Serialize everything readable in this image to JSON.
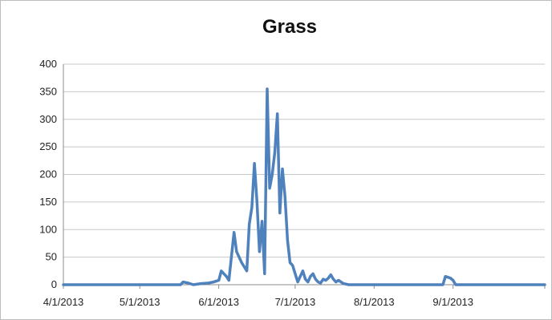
{
  "chart_data": {
    "type": "line",
    "title": "Grass",
    "xlabel": "",
    "ylabel": "",
    "ylim": [
      0,
      400
    ],
    "yticks": [
      0,
      50,
      100,
      150,
      200,
      250,
      300,
      350,
      400
    ],
    "xlim": [
      "2013-04-01",
      "2013-10-07"
    ],
    "xticks": [
      {
        "date": "2013-04-01",
        "label": "4/1/2013"
      },
      {
        "date": "2013-05-01",
        "label": "5/1/2013"
      },
      {
        "date": "2013-06-01",
        "label": "6/1/2013"
      },
      {
        "date": "2013-07-01",
        "label": "7/1/2013"
      },
      {
        "date": "2013-08-01",
        "label": "8/1/2013"
      },
      {
        "date": "2013-09-01",
        "label": "9/1/2013"
      }
    ],
    "grid": true,
    "line_color": "#4f81bd",
    "series": [
      {
        "x": [
          "2013-04-01",
          "2013-05-17",
          "2013-05-18",
          "2013-05-20",
          "2013-05-22",
          "2013-05-25",
          "2013-05-28",
          "2013-05-30",
          "2013-06-01",
          "2013-06-02",
          "2013-06-04",
          "2013-06-05",
          "2013-06-07",
          "2013-06-08",
          "2013-06-10",
          "2013-06-12",
          "2013-06-13",
          "2013-06-14",
          "2013-06-15",
          "2013-06-16",
          "2013-06-17",
          "2013-06-18",
          "2013-06-19",
          "2013-06-20",
          "2013-06-21",
          "2013-06-22",
          "2013-06-23",
          "2013-06-24",
          "2013-06-25",
          "2013-06-26",
          "2013-06-27",
          "2013-06-28",
          "2013-06-29",
          "2013-06-30",
          "2013-07-01",
          "2013-07-02",
          "2013-07-03",
          "2013-07-04",
          "2013-07-05",
          "2013-07-06",
          "2013-07-07",
          "2013-07-08",
          "2013-07-09",
          "2013-07-10",
          "2013-07-11",
          "2013-07-12",
          "2013-07-13",
          "2013-07-14",
          "2013-07-15",
          "2013-07-16",
          "2013-07-17",
          "2013-07-18",
          "2013-07-19",
          "2013-07-20",
          "2013-07-22",
          "2013-07-25",
          "2013-08-01",
          "2013-08-28",
          "2013-08-29",
          "2013-08-31",
          "2013-09-01",
          "2013-09-02",
          "2013-10-07"
        ],
        "y": [
          0,
          0,
          5,
          3,
          0,
          2,
          3,
          5,
          8,
          25,
          15,
          8,
          95,
          60,
          40,
          25,
          110,
          140,
          220,
          150,
          60,
          115,
          20,
          355,
          175,
          200,
          240,
          310,
          130,
          210,
          160,
          80,
          40,
          35,
          20,
          5,
          15,
          25,
          10,
          5,
          15,
          20,
          10,
          5,
          3,
          10,
          8,
          12,
          18,
          10,
          5,
          8,
          5,
          2,
          0,
          0,
          0,
          0,
          15,
          12,
          8,
          0,
          0
        ]
      }
    ]
  }
}
